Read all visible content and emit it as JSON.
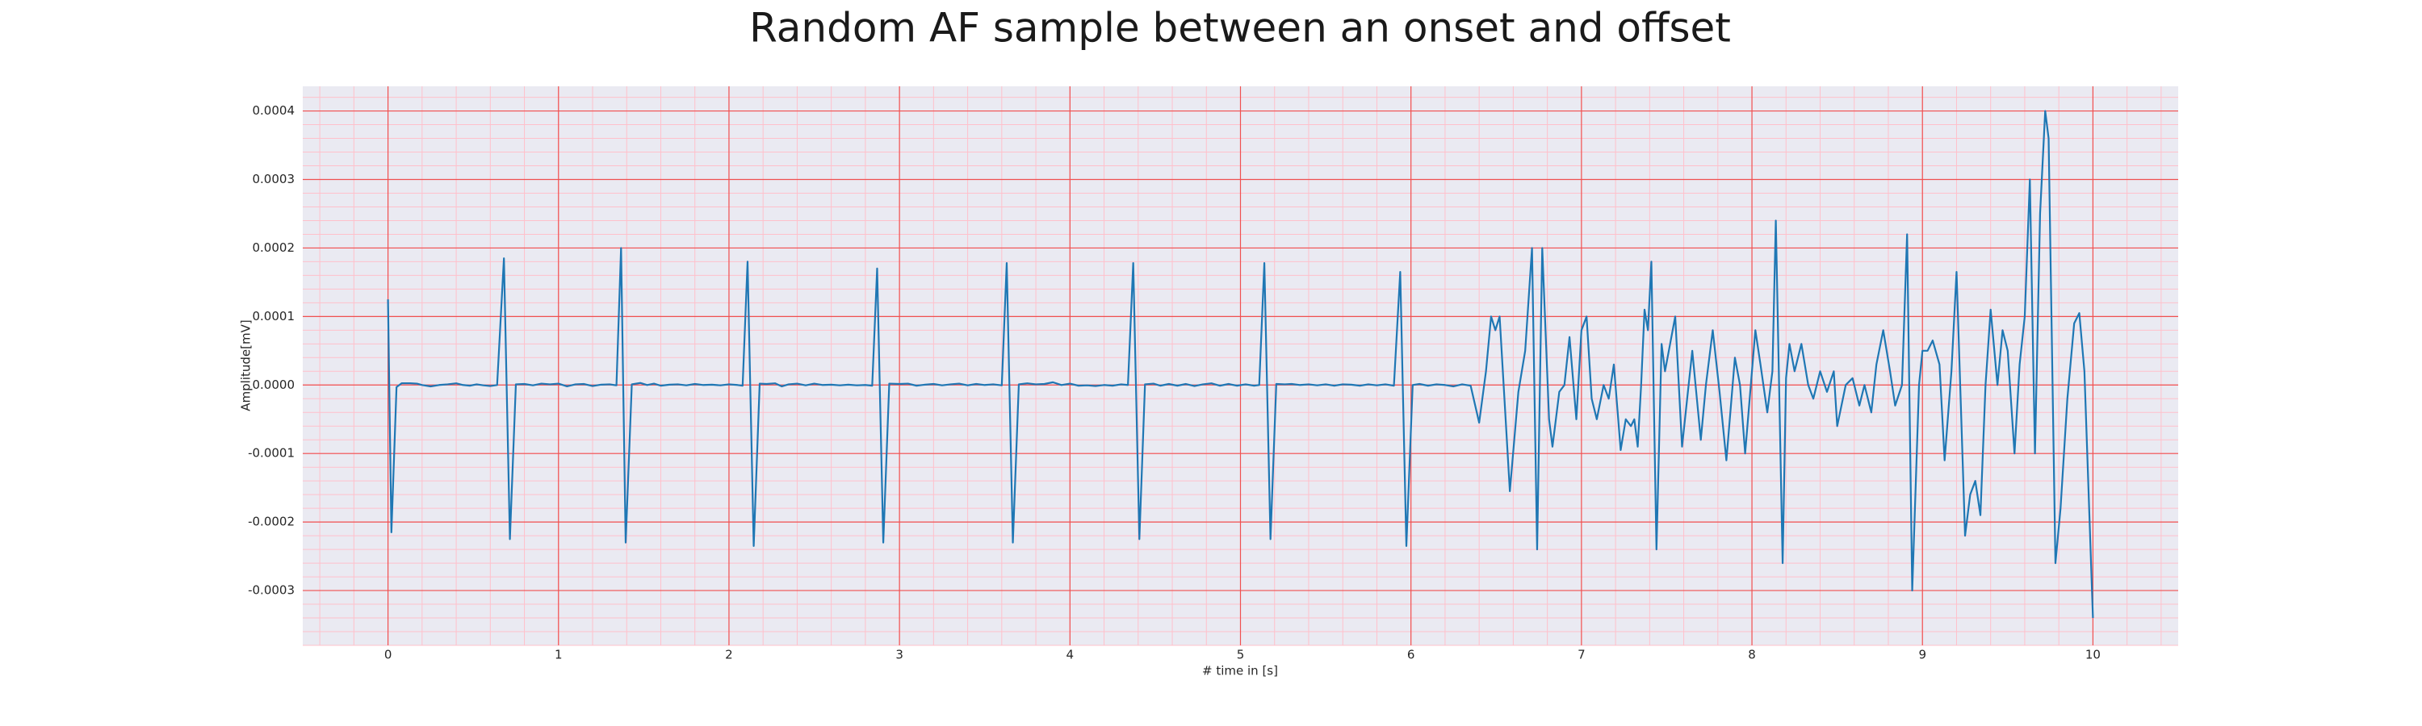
{
  "chart_data": {
    "type": "line",
    "title": "Random AF sample between an onset and offset",
    "xlabel": "# time in [s]",
    "ylabel": "Amplitude[mV]",
    "color": "#1f77b4",
    "background": "#eaeaf2",
    "grid": true,
    "grid_color": "#f05050",
    "minor_grid": true,
    "minor_grid_color": "#ffc0cb",
    "minor_divisions": 5,
    "xlim": [
      -0.5,
      10.5
    ],
    "ylim": [
      -0.00038,
      0.000436
    ],
    "xticks": [
      0,
      1,
      2,
      3,
      4,
      5,
      6,
      7,
      8,
      9,
      10
    ],
    "yticks": [
      {
        "value": -0.0003,
        "label": "-0.0003"
      },
      {
        "value": -0.0002,
        "label": "-0.0002"
      },
      {
        "value": -0.0001,
        "label": "-0.0001"
      },
      {
        "value": 0,
        "label": "0.0000"
      },
      {
        "value": 0.0001,
        "label": "0.0001"
      },
      {
        "value": 0.0002,
        "label": "0.0002"
      },
      {
        "value": 0.0003,
        "label": "0.0003"
      },
      {
        "value": 0.0004,
        "label": "0.0004"
      }
    ],
    "x": [
      0,
      0.02,
      0.05,
      0.08,
      0.13,
      0.17,
      0.2,
      0.25,
      0.3,
      0.35,
      0.4,
      0.44,
      0.48,
      0.52,
      0.56,
      0.6,
      0.64,
      0.68,
      0.715,
      0.75,
      0.8,
      0.85,
      0.9,
      0.95,
      1.0,
      1.05,
      1.1,
      1.15,
      1.2,
      1.25,
      1.3,
      1.34,
      1.367,
      1.394,
      1.43,
      1.48,
      1.52,
      1.56,
      1.6,
      1.65,
      1.7,
      1.75,
      1.8,
      1.85,
      1.9,
      1.95,
      2.0,
      2.05,
      2.08,
      2.109,
      2.145,
      2.18,
      2.22,
      2.27,
      2.31,
      2.35,
      2.4,
      2.45,
      2.5,
      2.55,
      2.6,
      2.65,
      2.7,
      2.75,
      2.8,
      2.84,
      2.869,
      2.905,
      2.94,
      3.0,
      3.05,
      3.1,
      3.15,
      3.2,
      3.25,
      3.3,
      3.35,
      3.4,
      3.45,
      3.5,
      3.55,
      3.6,
      3.629,
      3.665,
      3.7,
      3.75,
      3.8,
      3.85,
      3.9,
      3.95,
      4.0,
      4.05,
      4.1,
      4.15,
      4.2,
      4.25,
      4.3,
      4.34,
      4.371,
      4.407,
      4.44,
      4.49,
      4.53,
      4.58,
      4.63,
      4.68,
      4.73,
      4.78,
      4.83,
      4.88,
      4.93,
      4.98,
      5.03,
      5.08,
      5.11,
      5.14,
      5.176,
      5.21,
      5.26,
      5.3,
      5.35,
      5.4,
      5.45,
      5.5,
      5.55,
      5.6,
      5.65,
      5.7,
      5.75,
      5.8,
      5.85,
      5.9,
      5.937,
      5.973,
      6.01,
      6.05,
      6.1,
      6.15,
      6.2,
      6.25,
      6.3,
      6.35,
      6.4,
      6.44,
      6.47,
      6.495,
      6.52,
      6.58,
      6.63,
      6.67,
      6.71,
      6.74,
      6.77,
      6.81,
      6.83,
      6.87,
      6.9,
      6.93,
      6.97,
      7.0,
      7.03,
      7.06,
      7.09,
      7.13,
      7.16,
      7.19,
      7.23,
      7.26,
      7.29,
      7.31,
      7.33,
      7.35,
      7.37,
      7.39,
      7.41,
      7.44,
      7.47,
      7.49,
      7.52,
      7.55,
      7.59,
      7.62,
      7.65,
      7.7,
      7.73,
      7.77,
      7.81,
      7.85,
      7.9,
      7.93,
      7.96,
      8.02,
      8.05,
      8.09,
      8.12,
      8.14,
      8.18,
      8.2,
      8.22,
      8.25,
      8.29,
      8.33,
      8.36,
      8.4,
      8.44,
      8.48,
      8.5,
      8.55,
      8.59,
      8.63,
      8.66,
      8.7,
      8.73,
      8.77,
      8.81,
      8.84,
      8.88,
      8.91,
      8.94,
      8.98,
      9.0,
      9.03,
      9.06,
      9.1,
      9.13,
      9.17,
      9.2,
      9.25,
      9.28,
      9.31,
      9.34,
      9.37,
      9.4,
      9.44,
      9.47,
      9.5,
      9.54,
      9.57,
      9.6,
      9.63,
      9.66,
      9.69,
      9.72,
      9.74,
      9.78,
      9.81,
      9.85,
      9.89,
      9.92,
      9.95,
      10.0
    ],
    "values": [
      0.000125,
      -0.000215,
      -3e-06,
      2.5e-06,
      2.5e-06,
      2e-06,
      0,
      -2e-06,
      0,
      1e-06,
      2.5e-06,
      0,
      -1e-06,
      1e-06,
      -5e-07,
      -1.5e-06,
      0,
      0.000185,
      -0.000225,
      1e-06,
      1.5e-06,
      -5e-07,
      2e-06,
      1e-06,
      2e-06,
      -2e-06,
      1e-06,
      1.5e-06,
      -1.5e-06,
      5e-07,
      1e-06,
      -5e-07,
      0.0002,
      -0.00023,
      1e-06,
      3e-06,
      0,
      2e-06,
      -1e-06,
      5e-07,
      1e-06,
      -5e-07,
      1.5e-06,
      0,
      5e-07,
      -5e-07,
      1e-06,
      0,
      -1e-06,
      0.00018,
      -0.000235,
      2e-06,
      1.5e-06,
      2.5e-06,
      -2e-06,
      1e-06,
      2e-06,
      -5e-07,
      2e-06,
      0,
      5e-07,
      -5e-07,
      5e-07,
      -5e-07,
      0,
      -1e-06,
      0.00017,
      -0.00023,
      2e-06,
      1.5e-06,
      2e-06,
      -1e-06,
      5e-07,
      1.5e-06,
      -5e-07,
      1e-06,
      2e-06,
      -5e-07,
      1.5e-06,
      0,
      1e-06,
      -5e-07,
      0.000178,
      -0.00023,
      1e-06,
      2.5e-06,
      1e-06,
      1.5e-06,
      4e-06,
      0,
      2e-06,
      -1e-06,
      -5e-07,
      -1.5e-06,
      0,
      -1e-06,
      1e-06,
      0,
      0.000178,
      -0.000225,
      1e-06,
      2e-06,
      -1e-06,
      1.5e-06,
      -1e-06,
      1.5e-06,
      -1.5e-06,
      1e-06,
      2.5e-06,
      -1e-06,
      1.5e-06,
      -1e-06,
      1e-06,
      -1e-06,
      0,
      0.000178,
      -0.000225,
      1.5e-06,
      1e-06,
      1.5e-06,
      0,
      1e-06,
      -5e-07,
      1e-06,
      -1e-06,
      1e-06,
      5e-07,
      -1e-06,
      1e-06,
      -5e-07,
      1e-06,
      -1e-06,
      0.000165,
      -0.000235,
      0,
      1.5e-06,
      -1e-06,
      1e-06,
      0,
      -2e-06,
      1e-06,
      -1e-06,
      -5.5e-05,
      2e-05,
      0.0001,
      8e-05,
      0.0001,
      -0.000155,
      -1e-05,
      5e-05,
      0.0002,
      -0.00024,
      0.0002,
      -5e-05,
      -9e-05,
      -1e-05,
      0,
      7e-05,
      -5e-05,
      8e-05,
      0.0001,
      -2e-05,
      -5e-05,
      0,
      -2e-05,
      3e-05,
      -9.5e-05,
      -5e-05,
      -6e-05,
      -5e-05,
      -9e-05,
      0,
      0.00011,
      8e-05,
      0.00018,
      -0.00024,
      6e-05,
      2e-05,
      6e-05,
      0.0001,
      -9e-05,
      -2e-05,
      5e-05,
      -8e-05,
      0,
      8e-05,
      -1e-05,
      -0.00011,
      4e-05,
      0,
      -0.0001,
      8e-05,
      3e-05,
      -4e-05,
      2e-05,
      0.00024,
      -0.00026,
      1e-05,
      6e-05,
      2e-05,
      6e-05,
      0,
      -2e-05,
      2e-05,
      -1e-05,
      2e-05,
      -6e-05,
      0,
      1e-05,
      -3e-05,
      0,
      -4e-05,
      3e-05,
      8e-05,
      2e-05,
      -3e-05,
      0,
      0.00022,
      -0.0003,
      0,
      5e-05,
      5e-05,
      6.5e-05,
      3e-05,
      -0.00011,
      2e-05,
      0.000165,
      -0.00022,
      -0.00016,
      -0.00014,
      -0.00019,
      0,
      0.00011,
      0,
      8e-05,
      5e-05,
      -0.0001,
      3e-05,
      0.0001,
      0.0003,
      -0.0001,
      0.00025,
      0.0004,
      0.00036,
      -0.00026,
      -0.00018,
      -2e-05,
      9e-05,
      0.000105,
      2e-05,
      -0.00034
    ]
  }
}
